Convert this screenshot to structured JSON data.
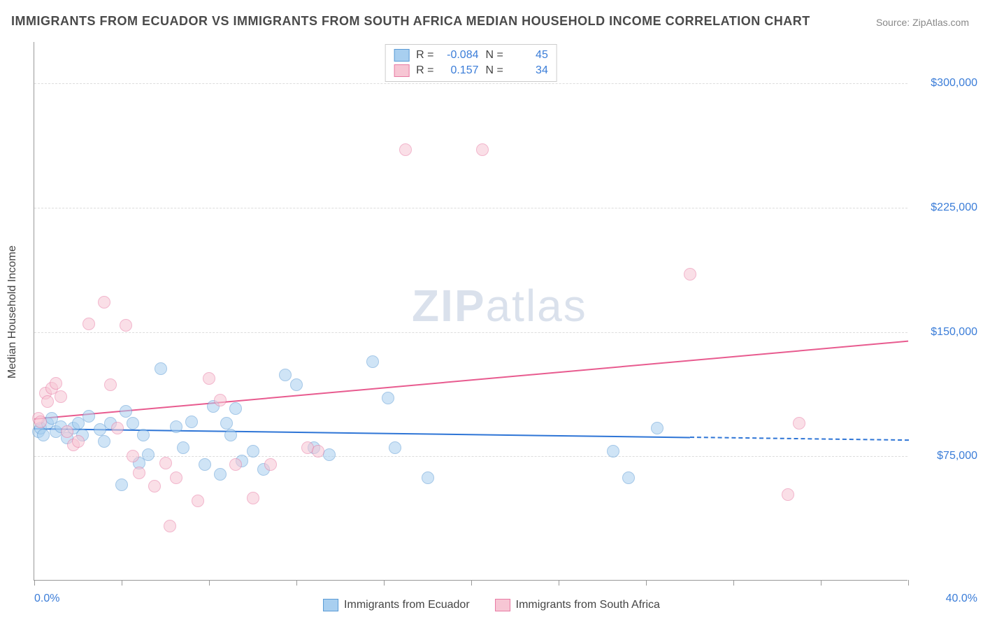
{
  "title": "IMMIGRANTS FROM ECUADOR VS IMMIGRANTS FROM SOUTH AFRICA MEDIAN HOUSEHOLD INCOME CORRELATION CHART",
  "source": "Source: ZipAtlas.com",
  "watermark_zip": "ZIP",
  "watermark_atlas": "atlas",
  "y_axis_label": "Median Household Income",
  "chart": {
    "type": "scatter",
    "xlim": [
      0,
      40
    ],
    "ylim": [
      0,
      325000
    ],
    "x_min_label": "0.0%",
    "x_max_label": "40.0%",
    "y_ticks": [
      75000,
      150000,
      225000,
      300000
    ],
    "y_tick_labels": [
      "$75,000",
      "$150,000",
      "$225,000",
      "$300,000"
    ],
    "x_tick_positions": [
      0,
      4,
      8,
      12,
      16,
      20,
      24,
      28,
      32,
      36,
      40
    ],
    "background_color": "#ffffff",
    "grid_color": "#dddddd",
    "axis_color": "#999999",
    "tick_label_color": "#3b7dd8",
    "point_radius": 9,
    "point_opacity": 0.55,
    "series": [
      {
        "name": "Immigrants from Ecuador",
        "color_fill": "#a8cff0",
        "color_stroke": "#5b9bd5",
        "R": "-0.084",
        "N": "45",
        "trend": {
          "x1": 0,
          "y1": 92000,
          "x2": 40,
          "y2": 85000,
          "solid_until_x": 30,
          "color": "#2e75d6",
          "width": 2
        },
        "points": [
          [
            0.2,
            90000
          ],
          [
            0.3,
            92000
          ],
          [
            0.4,
            88000
          ],
          [
            0.6,
            95000
          ],
          [
            0.8,
            98000
          ],
          [
            1.0,
            90000
          ],
          [
            1.2,
            93000
          ],
          [
            1.5,
            86000
          ],
          [
            1.8,
            92000
          ],
          [
            2.0,
            95000
          ],
          [
            2.2,
            88000
          ],
          [
            2.5,
            99000
          ],
          [
            3.0,
            91000
          ],
          [
            3.2,
            84000
          ],
          [
            3.5,
            95000
          ],
          [
            4.0,
            58000
          ],
          [
            4.2,
            102000
          ],
          [
            4.5,
            95000
          ],
          [
            4.8,
            71000
          ],
          [
            5.0,
            88000
          ],
          [
            5.2,
            76000
          ],
          [
            5.8,
            128000
          ],
          [
            6.5,
            93000
          ],
          [
            6.8,
            80000
          ],
          [
            7.2,
            96000
          ],
          [
            7.8,
            70000
          ],
          [
            8.2,
            105000
          ],
          [
            8.5,
            64000
          ],
          [
            8.8,
            95000
          ],
          [
            9.0,
            88000
          ],
          [
            9.2,
            104000
          ],
          [
            9.5,
            72000
          ],
          [
            10.0,
            78000
          ],
          [
            10.5,
            67000
          ],
          [
            11.5,
            124000
          ],
          [
            12.0,
            118000
          ],
          [
            12.8,
            80000
          ],
          [
            13.5,
            76000
          ],
          [
            15.5,
            132000
          ],
          [
            16.2,
            110000
          ],
          [
            16.5,
            80000
          ],
          [
            18.0,
            62000
          ],
          [
            26.5,
            78000
          ],
          [
            27.2,
            62000
          ],
          [
            28.5,
            92000
          ]
        ]
      },
      {
        "name": "Immigrants from South Africa",
        "color_fill": "#f7c6d4",
        "color_stroke": "#e87ba4",
        "R": "0.157",
        "N": "34",
        "trend": {
          "x1": 0,
          "y1": 98000,
          "x2": 40,
          "y2": 145000,
          "solid_until_x": 40,
          "color": "#e85b8f",
          "width": 2
        },
        "points": [
          [
            0.2,
            98000
          ],
          [
            0.3,
            96000
          ],
          [
            0.5,
            113000
          ],
          [
            0.6,
            108000
          ],
          [
            0.8,
            116000
          ],
          [
            1.0,
            119000
          ],
          [
            1.2,
            111000
          ],
          [
            1.5,
            90000
          ],
          [
            1.8,
            82000
          ],
          [
            2.0,
            84000
          ],
          [
            2.5,
            155000
          ],
          [
            3.2,
            168000
          ],
          [
            3.5,
            118000
          ],
          [
            3.8,
            92000
          ],
          [
            4.2,
            154000
          ],
          [
            4.5,
            75000
          ],
          [
            4.8,
            65000
          ],
          [
            5.5,
            57000
          ],
          [
            6.0,
            71000
          ],
          [
            6.2,
            33000
          ],
          [
            6.5,
            62000
          ],
          [
            7.5,
            48000
          ],
          [
            8.0,
            122000
          ],
          [
            8.5,
            109000
          ],
          [
            9.2,
            70000
          ],
          [
            10.0,
            50000
          ],
          [
            10.8,
            70000
          ],
          [
            12.5,
            80000
          ],
          [
            13.0,
            78000
          ],
          [
            17.0,
            260000
          ],
          [
            20.5,
            260000
          ],
          [
            30.0,
            185000
          ],
          [
            34.5,
            52000
          ],
          [
            35.0,
            95000
          ]
        ]
      }
    ]
  },
  "stat_legend": {
    "r_label": "R =",
    "n_label": "N ="
  }
}
